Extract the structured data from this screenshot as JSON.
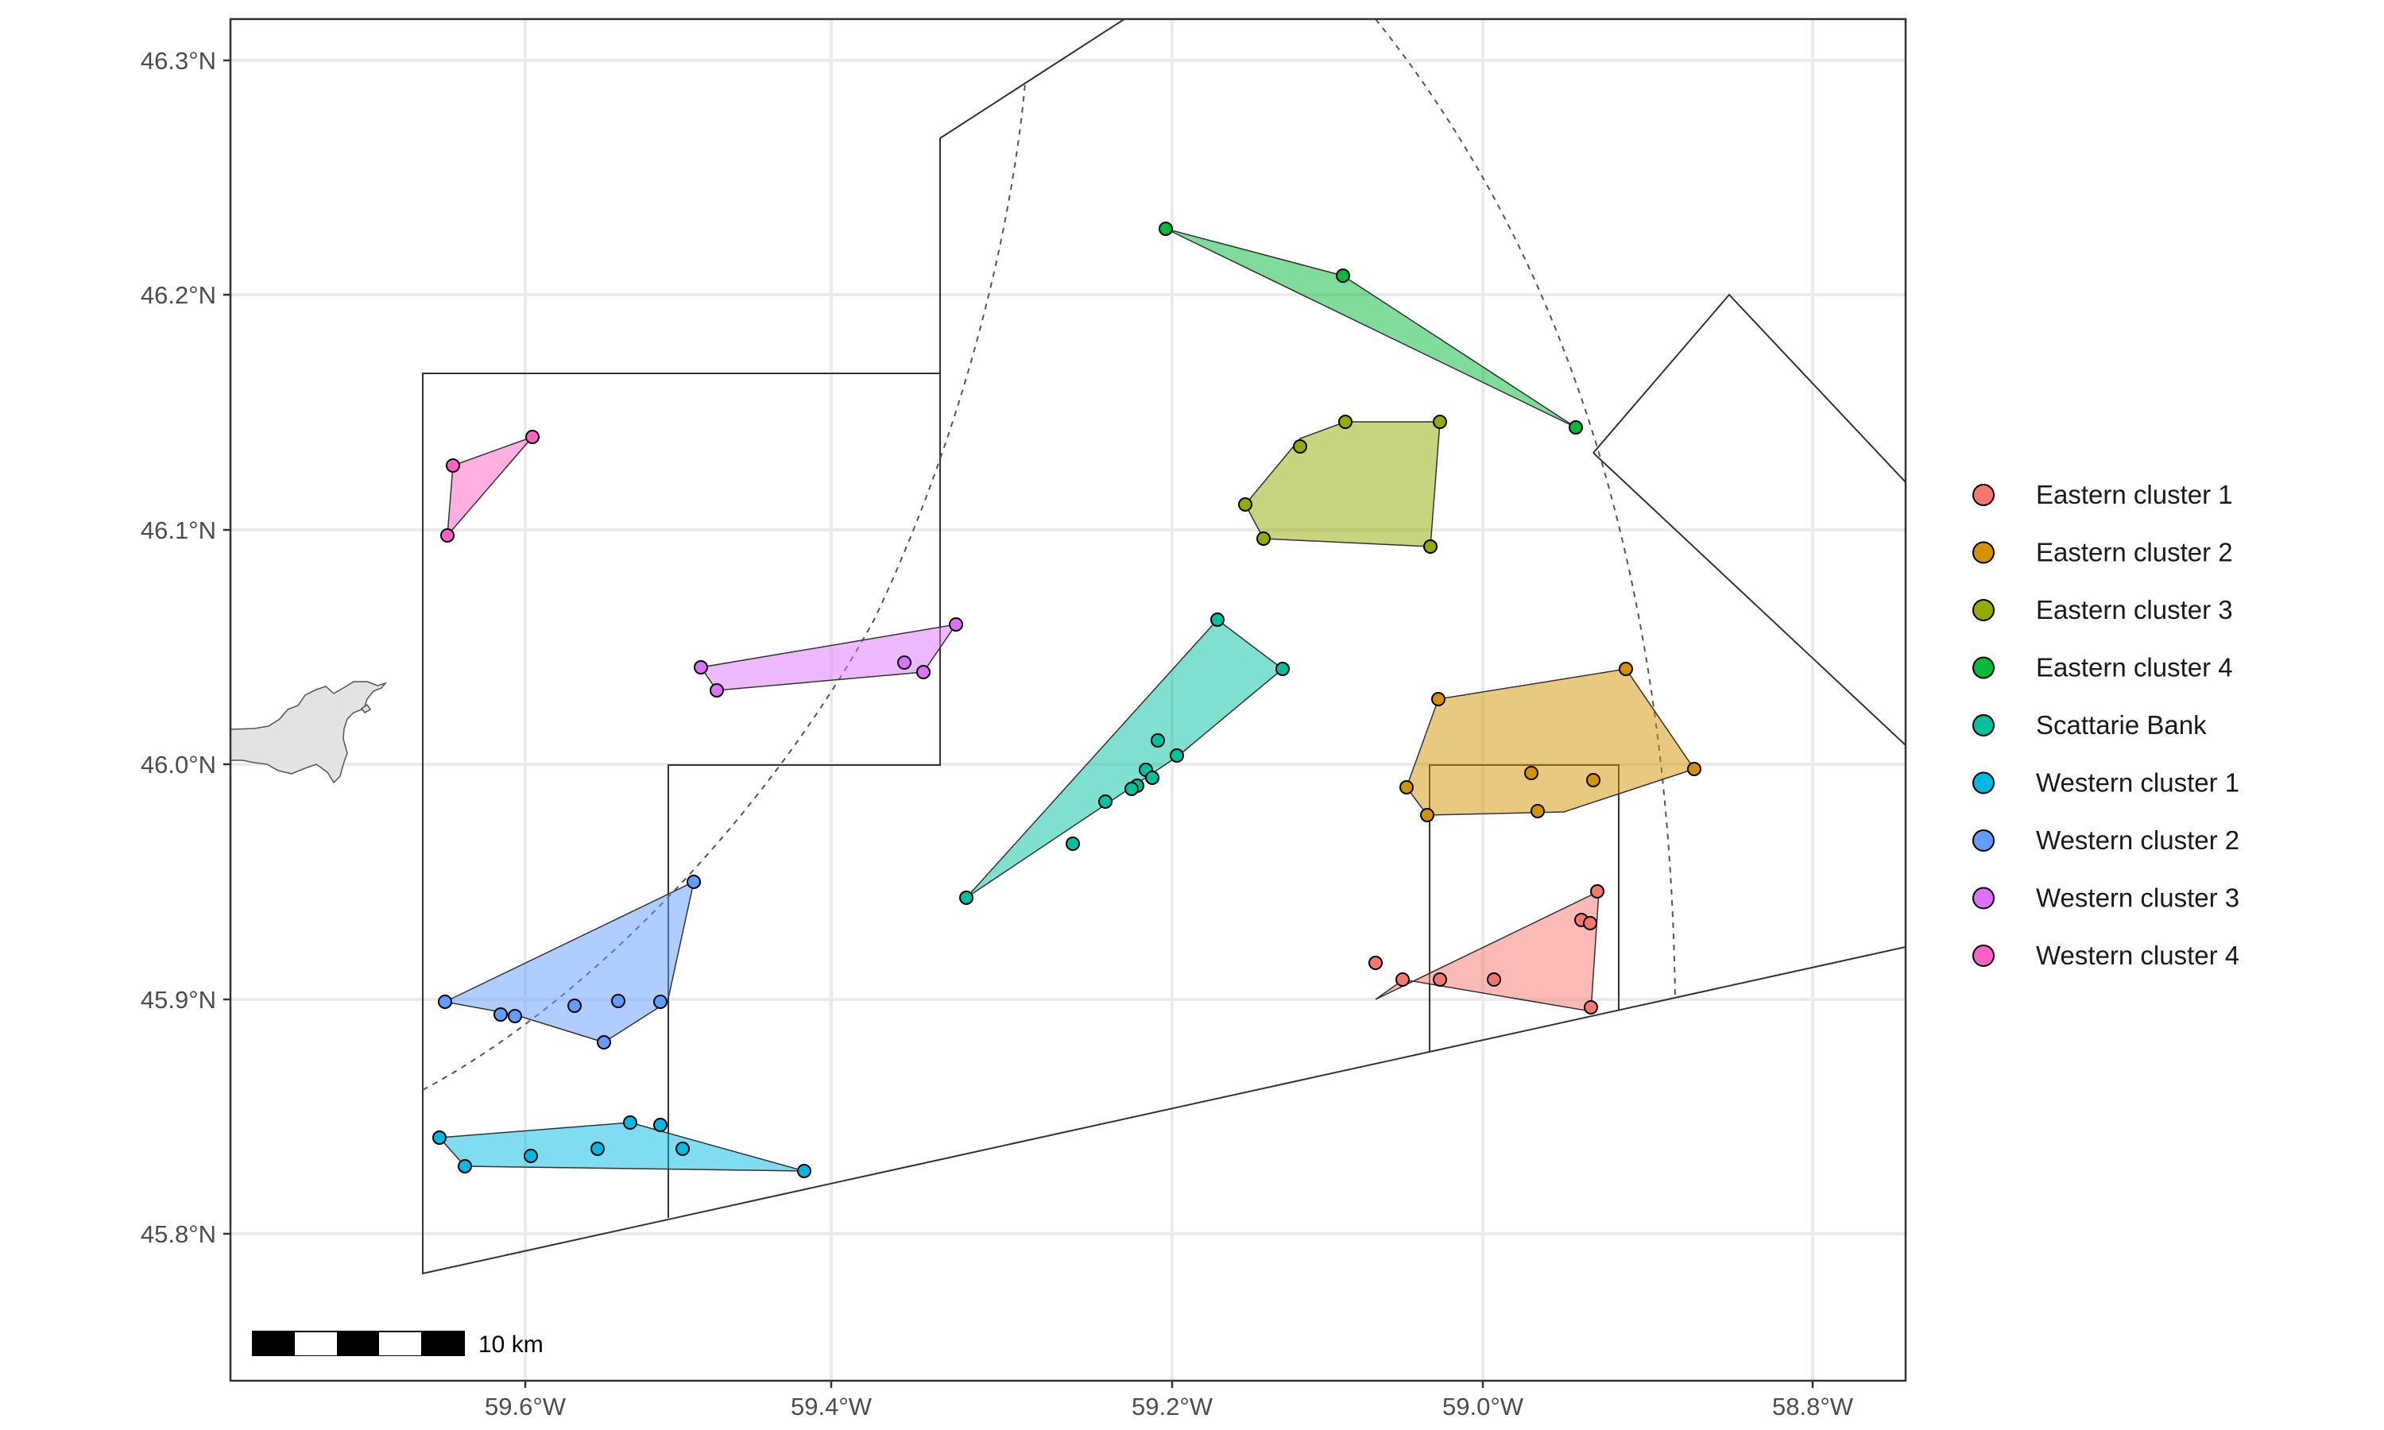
{
  "map": {
    "x_ticks": [
      "59.6°W",
      "59.4°W",
      "59.2°W",
      "59.0°W",
      "58.8°W"
    ],
    "y_ticks": [
      "45.8°N",
      "45.9°N",
      "46.0°N",
      "46.1°N",
      "46.2°N",
      "46.3°N"
    ],
    "scale_bar": {
      "label": "10 km"
    },
    "legend": [
      {
        "name": "Eastern cluster 1",
        "color": "#F8766D"
      },
      {
        "name": "Eastern cluster 2",
        "color": "#D39200"
      },
      {
        "name": "Eastern cluster 3",
        "color": "#93AA00"
      },
      {
        "name": "Eastern cluster 4",
        "color": "#00BA38"
      },
      {
        "name": "Scattarie Bank",
        "color": "#00C19F"
      },
      {
        "name": "Western cluster 1",
        "color": "#00B9E3"
      },
      {
        "name": "Western cluster 2",
        "color": "#619CFF"
      },
      {
        "name": "Western cluster 3",
        "color": "#DB72FB"
      },
      {
        "name": "Western cluster 4",
        "color": "#FF61C3"
      }
    ]
  }
}
